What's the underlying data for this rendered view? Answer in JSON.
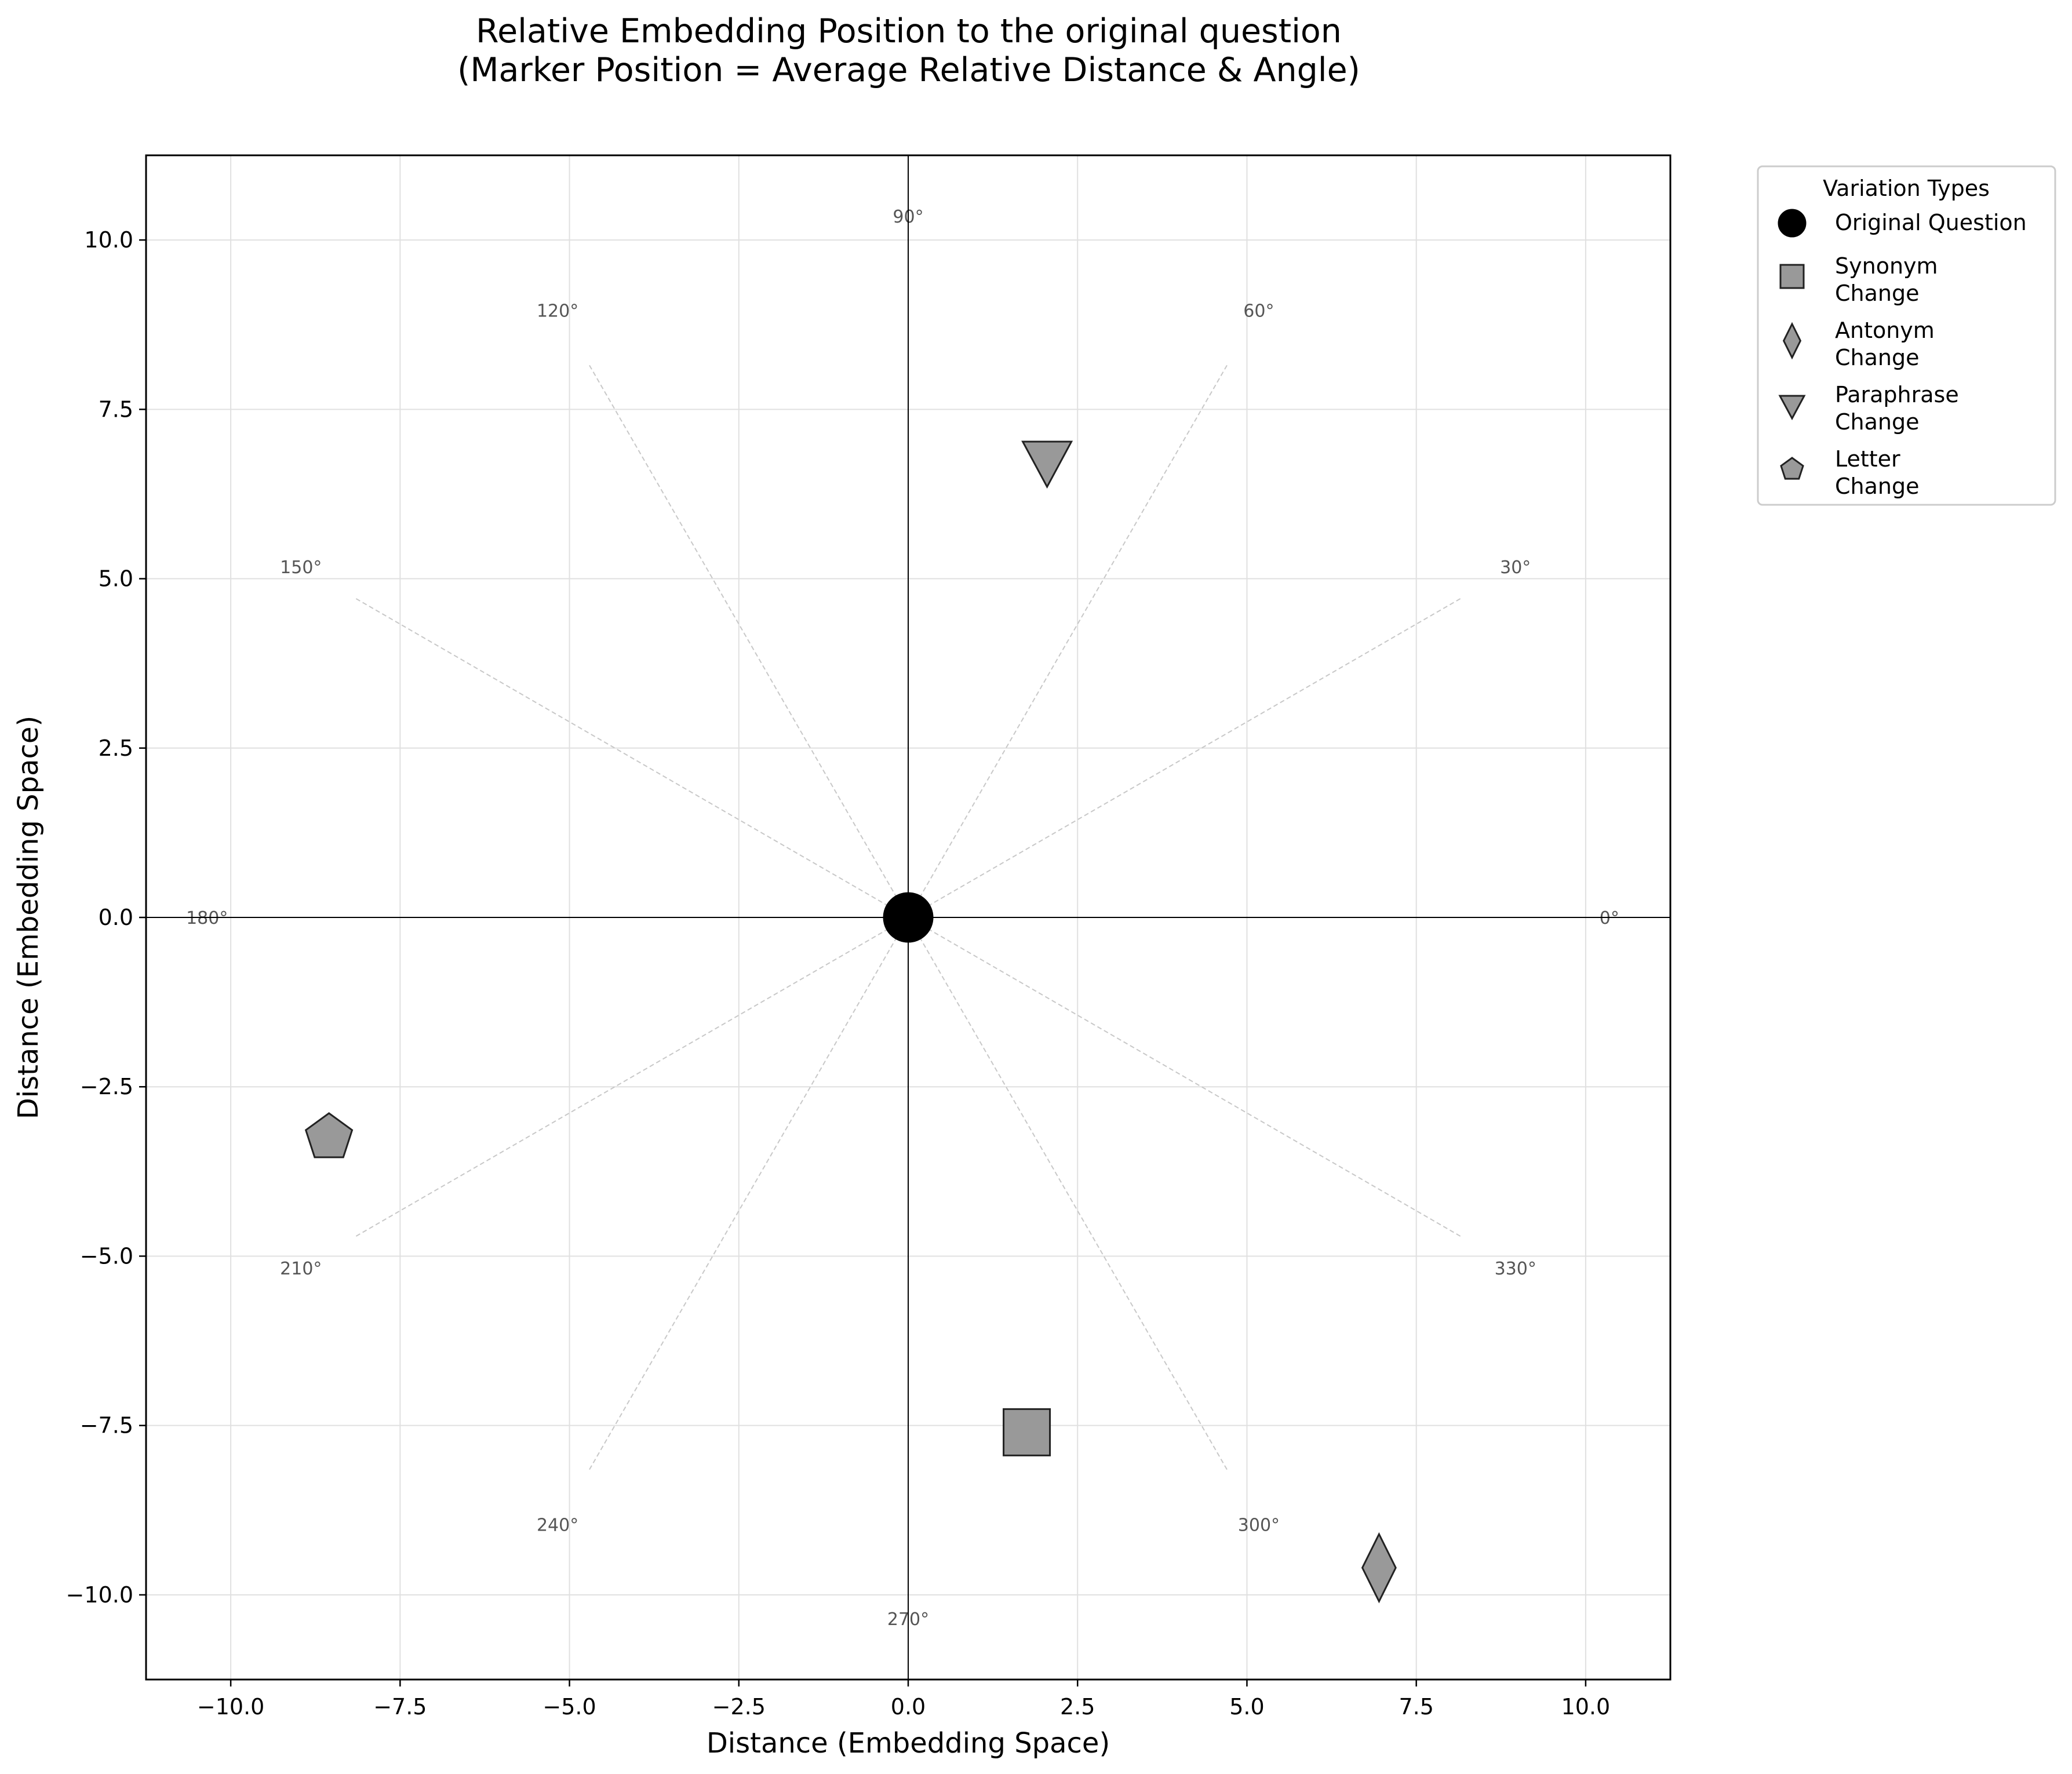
{
  "chart_data": {
    "type": "scatter",
    "title_lines": [
      "Relative Embedding Position to the original question",
      "(Marker Position = Average Relative Distance & Angle)"
    ],
    "xlabel": "Distance (Embedding Space)",
    "ylabel": "Distance (Embedding Space)",
    "xlim": [
      -11.25,
      11.25
    ],
    "ylim": [
      -11.25,
      11.25
    ],
    "x_ticks": [
      -10.0,
      -7.5,
      -5.0,
      -2.5,
      0.0,
      2.5,
      5.0,
      7.5,
      10.0
    ],
    "y_ticks": [
      -10.0,
      -7.5,
      -5.0,
      -2.5,
      0.0,
      2.5,
      5.0,
      7.5,
      10.0
    ],
    "x_tick_labels": [
      "−10.0",
      "−7.5",
      "−5.0",
      "−2.5",
      "0.0",
      "2.5",
      "5.0",
      "7.5",
      "10.0"
    ],
    "y_tick_labels": [
      "−10.0",
      "−7.5",
      "−5.0",
      "−2.5",
      "0.0",
      "2.5",
      "5.0",
      "7.5",
      "10.0"
    ],
    "grid": true,
    "colors": {
      "fill": "#999999",
      "edge": "#222222",
      "origin": "#000000",
      "grid": "#e0e0e0",
      "guide": "#c8c8c8",
      "angle_text": "#555555"
    },
    "angle_guides": {
      "ray_radius": 9.45,
      "label_radius": 10.35,
      "angles": [
        {
          "deg": 0,
          "label": "0°"
        },
        {
          "deg": 30,
          "label": "30°"
        },
        {
          "deg": 60,
          "label": "60°"
        },
        {
          "deg": 90,
          "label": "90°"
        },
        {
          "deg": 120,
          "label": "120°"
        },
        {
          "deg": 150,
          "label": "150°"
        },
        {
          "deg": 180,
          "label": "180°"
        },
        {
          "deg": 210,
          "label": "210°"
        },
        {
          "deg": 240,
          "label": "240°"
        },
        {
          "deg": 270,
          "label": "270°"
        },
        {
          "deg": 300,
          "label": "300°"
        },
        {
          "deg": 330,
          "label": "330°"
        }
      ]
    },
    "series": [
      {
        "name": "Original Question",
        "legend_lines": [
          "Original Question"
        ],
        "marker": "circle",
        "x": 0.0,
        "y": 0.0
      },
      {
        "name": "Synonym Change",
        "legend_lines": [
          "Synonym",
          "Change"
        ],
        "marker": "square",
        "x": 1.75,
        "y": -7.6
      },
      {
        "name": "Antonym Change",
        "legend_lines": [
          "Antonym",
          "Change"
        ],
        "marker": "thin-diamond",
        "x": 6.95,
        "y": -9.6
      },
      {
        "name": "Paraphrase Change",
        "legend_lines": [
          "Paraphrase",
          "Change"
        ],
        "marker": "triangle-down",
        "x": 2.05,
        "y": 6.75
      },
      {
        "name": "Letter Change",
        "legend_lines": [
          "Letter",
          "Change"
        ],
        "marker": "pentagon",
        "x": -8.55,
        "y": -3.25
      }
    ],
    "legend": {
      "title": "Variation Types",
      "placement": "outside-upper-right"
    }
  }
}
